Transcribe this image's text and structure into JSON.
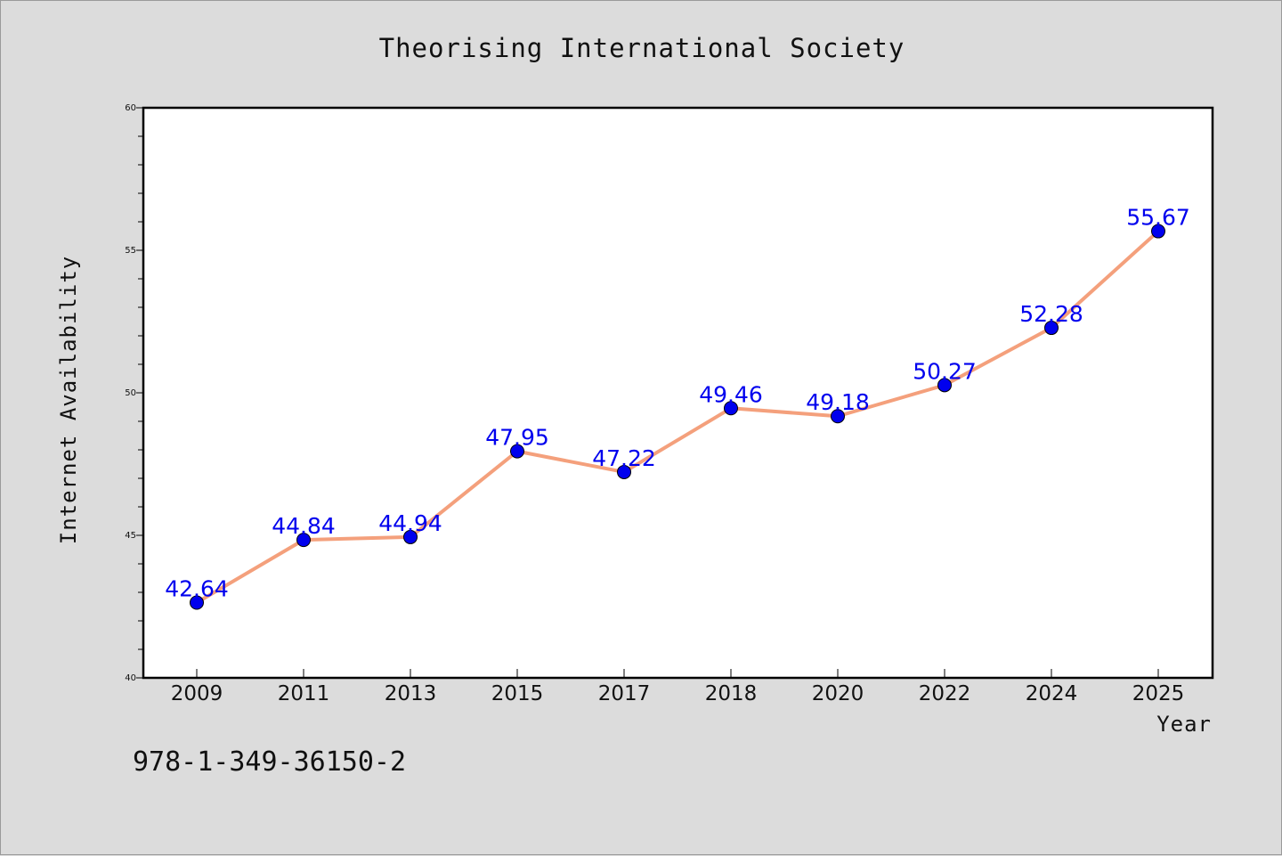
{
  "chart_data": {
    "type": "line",
    "title": "Theorising International Society",
    "xlabel": "Year",
    "ylabel": "Internet Availability",
    "categories": [
      "2009",
      "2011",
      "2013",
      "2015",
      "2017",
      "2018",
      "2020",
      "2022",
      "2024",
      "2025"
    ],
    "series": [
      {
        "values": [
          42.64,
          44.84,
          44.94,
          47.95,
          47.22,
          49.46,
          49.18,
          50.27,
          52.28,
          55.67
        ],
        "line_color": "#f4a07c",
        "marker_color": "#0000ee"
      }
    ],
    "data_labels": [
      "42.64",
      "44.84",
      "44.94",
      "47.95",
      "47.22",
      "49.46",
      "49.18",
      "50.27",
      "52.28",
      "55.67"
    ],
    "ylim": [
      40,
      60
    ],
    "yticks": [
      "40",
      "45",
      "50",
      "55",
      "60"
    ],
    "grid": false,
    "legend": "none"
  },
  "footer": {
    "isbn": "978-1-349-36150-2"
  },
  "colors": {
    "background": "#dcdcdc",
    "plot_background": "#ffffff",
    "label_color": "#0000ee"
  }
}
